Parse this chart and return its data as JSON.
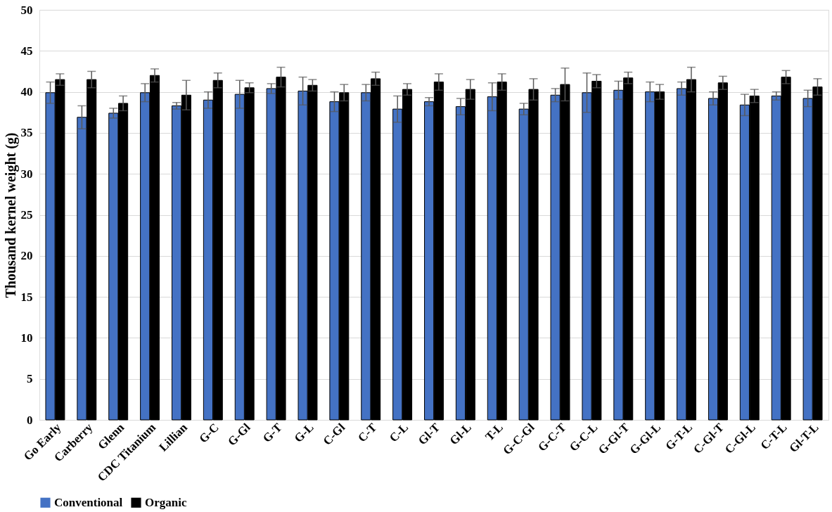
{
  "chart_data": {
    "type": "bar",
    "ylabel": "Thousand kernel weight (g)",
    "categories": [
      "Go Early",
      "Carberry",
      "Glenn",
      "CDC Titanium",
      "Lillian",
      "G-C",
      "G-Gl",
      "G-T",
      "G-L",
      "C-Gl",
      "C-T",
      "C-L",
      "Gl-T",
      "Gl-L",
      "T-L",
      "G-C-Gl",
      "G-C-T",
      "G-C-L",
      "G-Gl-T",
      "G-Gl-L",
      "G-T-L",
      "C-Gl-T",
      "C-Gl-L",
      "C-T-L",
      "Gl-T-L"
    ],
    "series": [
      {
        "name": "Conventional",
        "color": "#4472c4",
        "values": [
          39.9,
          36.9,
          37.4,
          39.9,
          38.3,
          39.0,
          39.7,
          40.4,
          40.1,
          38.8,
          39.9,
          37.9,
          38.8,
          38.2,
          39.4,
          37.9,
          39.6,
          39.9,
          40.2,
          40.0,
          40.4,
          39.2,
          38.4,
          39.5,
          39.2
        ],
        "errors": [
          1.3,
          1.4,
          0.6,
          1.1,
          0.4,
          1.0,
          1.7,
          0.6,
          1.7,
          1.2,
          1.0,
          1.6,
          0.5,
          1.0,
          1.7,
          0.7,
          0.8,
          2.4,
          1.1,
          1.2,
          0.8,
          0.8,
          1.3,
          0.5,
          1.0
        ]
      },
      {
        "name": "Organic",
        "color": "#000000",
        "values": [
          41.5,
          41.5,
          38.6,
          42.0,
          39.6,
          41.4,
          40.5,
          41.8,
          40.8,
          39.9,
          41.6,
          40.3,
          41.2,
          40.3,
          41.2,
          40.3,
          40.9,
          41.3,
          41.7,
          40.0,
          41.5,
          41.1,
          39.5,
          41.8,
          40.6
        ],
        "errors": [
          0.7,
          1.0,
          0.9,
          0.8,
          1.8,
          0.9,
          0.6,
          1.2,
          0.7,
          1.0,
          0.8,
          0.7,
          1.0,
          1.2,
          1.0,
          1.3,
          2.0,
          0.8,
          0.7,
          0.9,
          1.5,
          0.8,
          0.8,
          0.8,
          1.0
        ]
      }
    ],
    "ylim": [
      0,
      50
    ],
    "yticks": [
      0,
      5,
      10,
      15,
      20,
      25,
      30,
      35,
      40,
      45,
      50
    ],
    "grid": "y",
    "legend": "bottom"
  }
}
